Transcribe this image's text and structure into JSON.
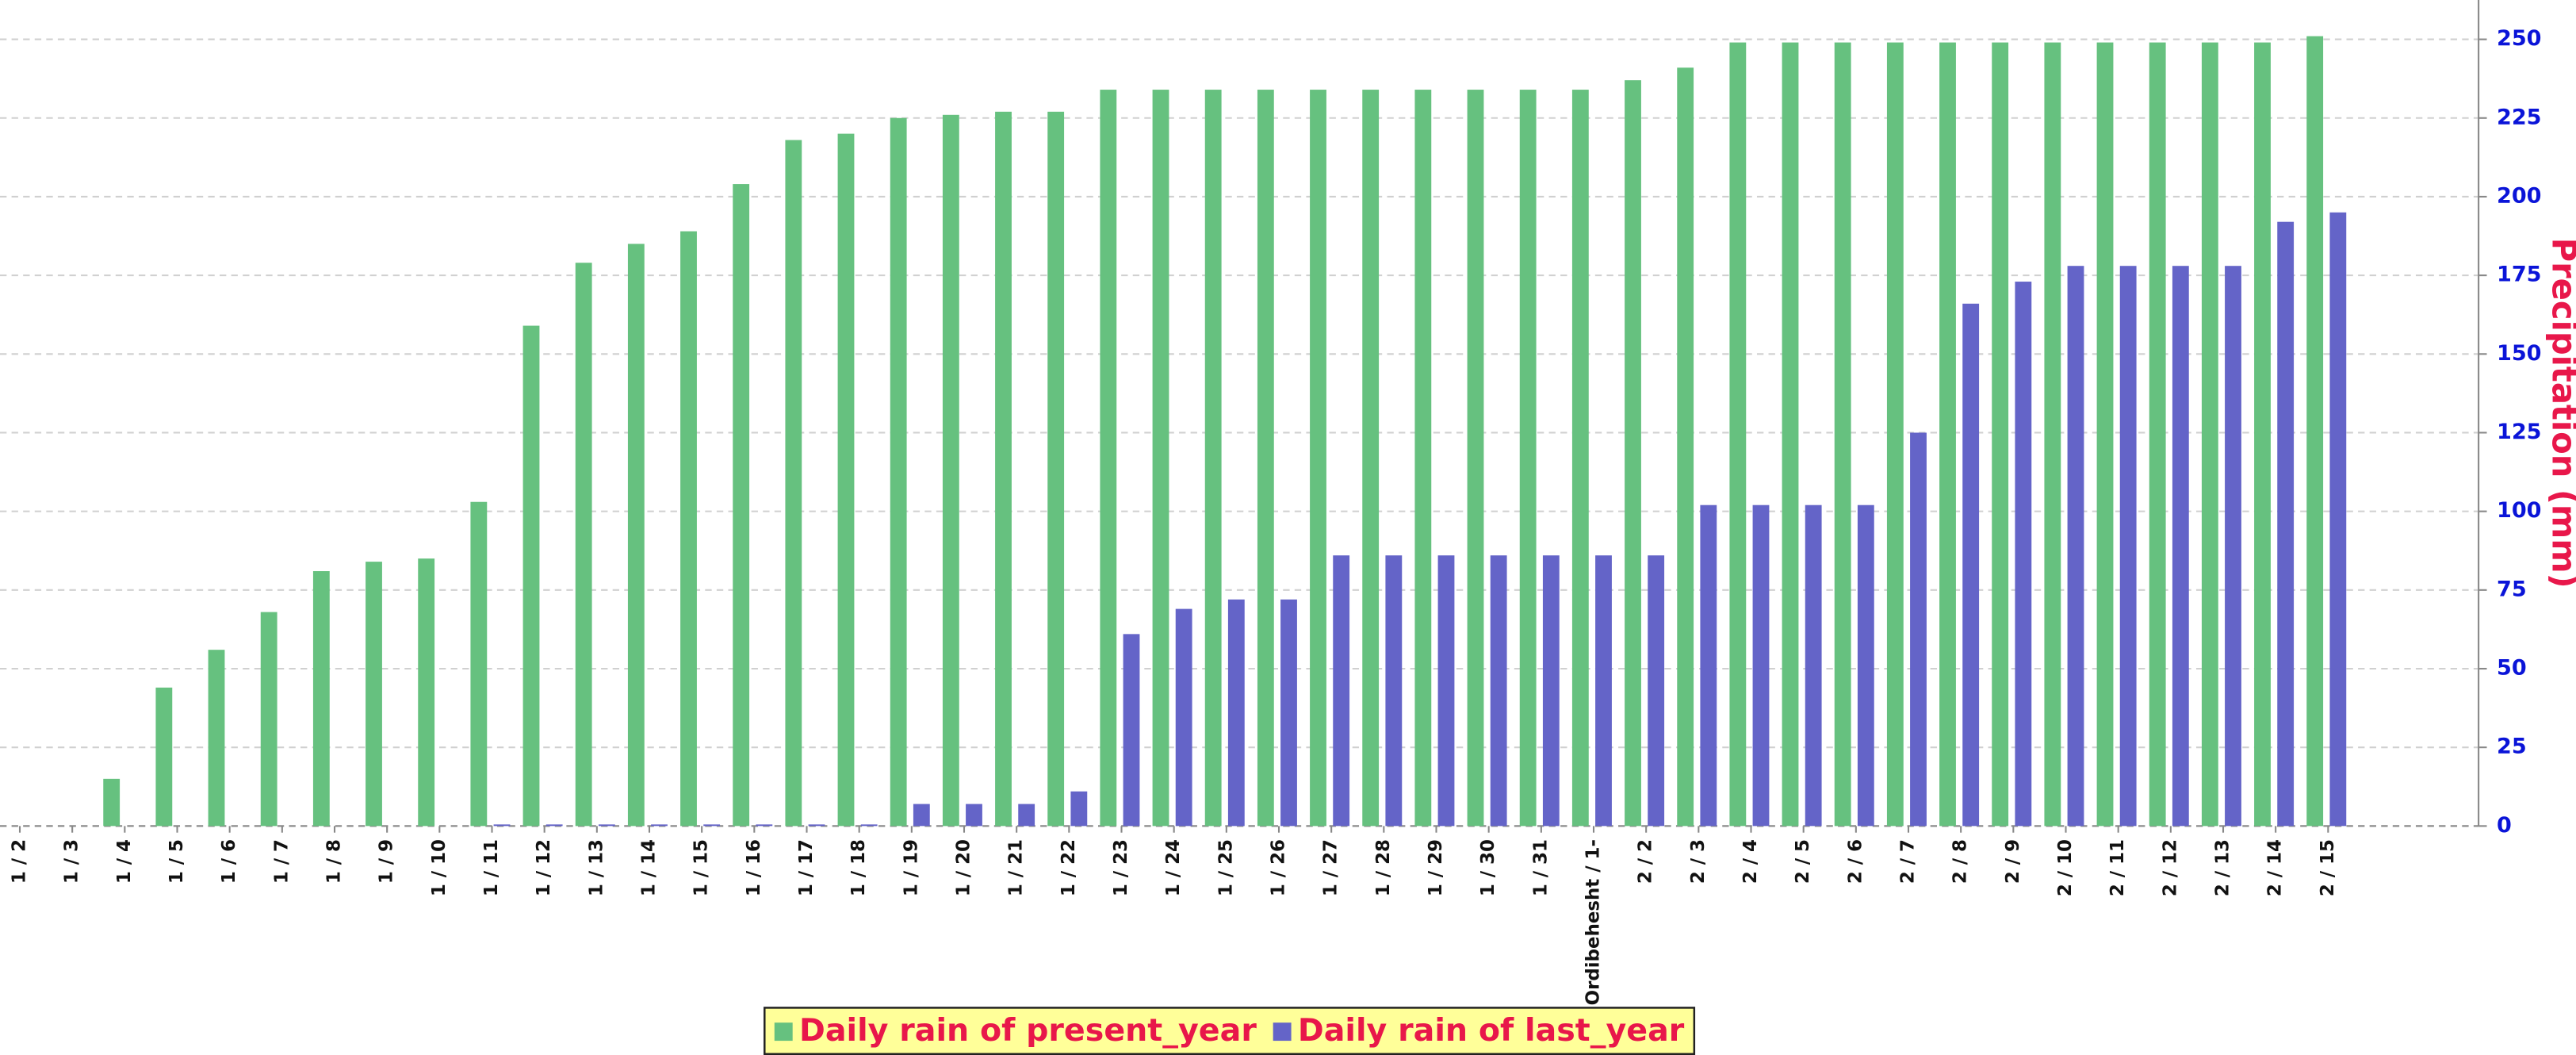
{
  "chart_data": {
    "type": "bar",
    "y_axis_label": "Precipitation (mm)",
    "y_axis_side": "right",
    "categories": [
      "1 / 2",
      "1 / 3",
      "1 / 4",
      "1 / 5",
      "1 / 6",
      "1 / 7",
      "1 / 8",
      "1 / 9",
      "1 / 10",
      "1 / 11",
      "1 / 12",
      "1 / 13",
      "1 / 14",
      "1 / 15",
      "1 / 16",
      "1 / 17",
      "1 / 18",
      "1 / 19",
      "1 / 20",
      "1 / 21",
      "1 / 22",
      "1 / 23",
      "1 / 24",
      "1 / 25",
      "1 / 26",
      "1 / 27",
      "1 / 28",
      "1 / 29",
      "1 / 30",
      "1 / 31",
      "Ordibehesht / 1-",
      "2 / 2",
      "2 / 3",
      "2 / 4",
      "2 / 5",
      "2 / 6",
      "2 / 7",
      "2 / 8",
      "2 / 9",
      "2 / 10",
      "2 / 11",
      "2 / 12",
      "2 / 13",
      "2 / 14",
      "2 / 15"
    ],
    "series": [
      {
        "name": "Daily rain of present_year",
        "color": "#66c17f",
        "values": [
          0,
          0,
          15,
          44,
          56,
          68,
          81,
          84,
          85,
          103,
          159,
          179,
          185,
          189,
          204,
          218,
          220,
          225,
          226,
          227,
          227,
          234,
          234,
          234,
          234,
          234,
          234,
          234,
          234,
          234,
          234,
          237,
          241,
          249,
          249,
          249,
          249,
          249,
          249,
          249,
          249,
          249,
          249,
          249,
          251
        ]
      },
      {
        "name": "Daily rain of last_year",
        "color": "#6464c8",
        "values": [
          0,
          0,
          0,
          0,
          0,
          0,
          0,
          0,
          0,
          0.5,
          0.5,
          0.5,
          0.5,
          0.5,
          0.5,
          0.5,
          0.5,
          7,
          7,
          7,
          11,
          61,
          69,
          72,
          72,
          86,
          86,
          86,
          86,
          86,
          86,
          86,
          102,
          102,
          102,
          102,
          125,
          166,
          173,
          178,
          178,
          178,
          178,
          192,
          195
        ]
      }
    ],
    "ylim": [
      0,
      262.5
    ],
    "yticks": [
      0,
      25,
      50,
      75,
      100,
      125,
      150,
      175,
      200,
      225,
      250
    ],
    "grid": true,
    "legend": "bottom"
  }
}
